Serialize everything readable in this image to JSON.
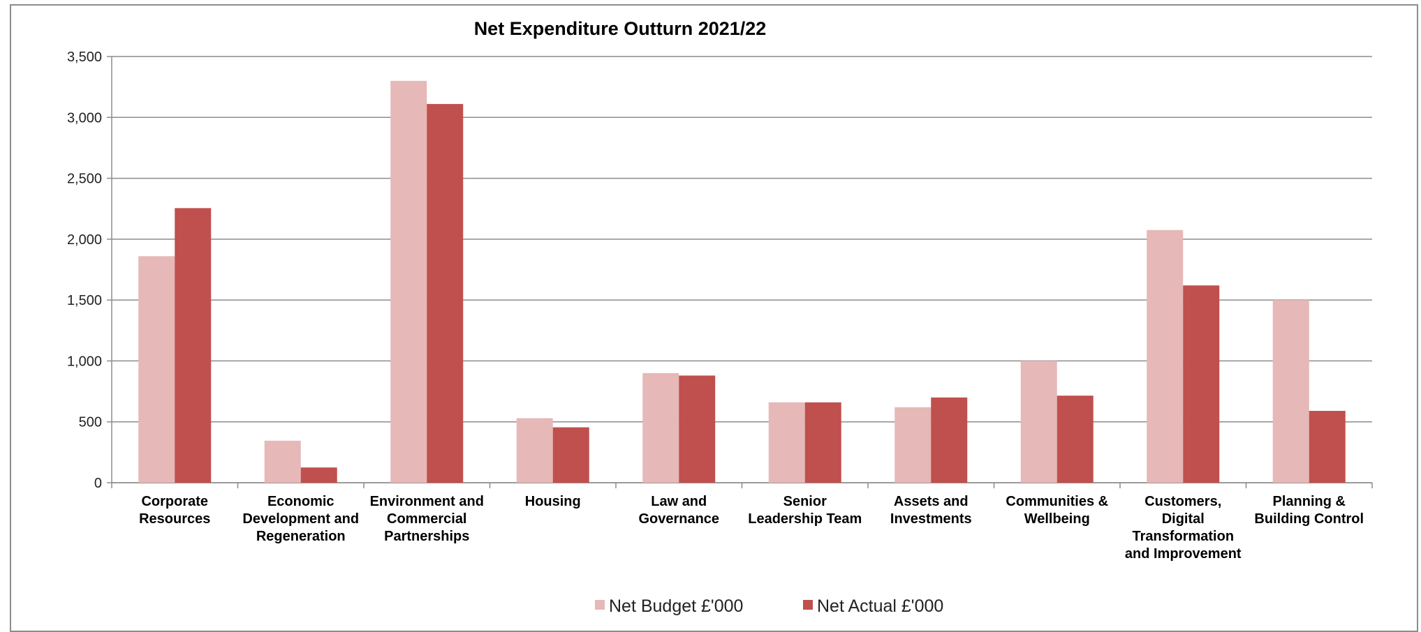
{
  "chart_data": {
    "type": "bar",
    "title": "Net Expenditure Outturn 2021/22",
    "xlabel": "",
    "ylabel": "",
    "ylim": [
      0,
      3500
    ],
    "yticks": [
      0,
      500,
      1000,
      1500,
      2000,
      2500,
      3000,
      3500
    ],
    "ytick_labels": [
      "0",
      "500",
      "1,000",
      "1,500",
      "2,000",
      "2,500",
      "3,000",
      "3,500"
    ],
    "grid": true,
    "legend_position": "bottom",
    "categories": [
      [
        "Corporate",
        "Resources"
      ],
      [
        "Economic",
        "Development and",
        "Regeneration"
      ],
      [
        "Environment and",
        "Commercial",
        "Partnerships"
      ],
      [
        "Housing"
      ],
      [
        "Law and",
        "Governance"
      ],
      [
        "Senior",
        "Leadership Team"
      ],
      [
        "Assets and",
        "Investments"
      ],
      [
        "Communities &",
        "Wellbeing"
      ],
      [
        "Customers,",
        "Digital",
        "Transformation",
        "and Improvement"
      ],
      [
        "Planning &",
        "Building Control"
      ]
    ],
    "series": [
      {
        "name": "Net Budget £'000",
        "color": "#e6b8b7",
        "values": [
          1860,
          345,
          3300,
          530,
          900,
          660,
          620,
          1000,
          2075,
          1500
        ]
      },
      {
        "name": "Net Actual £'000",
        "color": "#c0504d",
        "values": [
          2255,
          125,
          3110,
          455,
          880,
          660,
          700,
          715,
          1620,
          590
        ]
      }
    ]
  }
}
